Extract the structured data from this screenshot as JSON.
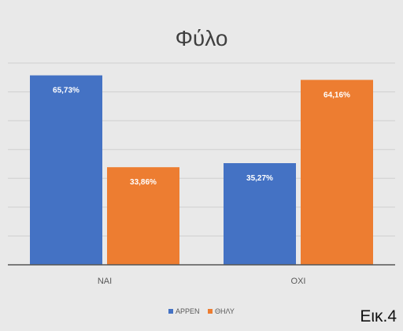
{
  "figure_label": "Εικ.4",
  "colors": {
    "background": "#e9e9e9",
    "grid": "#cfcfcf",
    "axis": "#555555"
  },
  "chart_data": {
    "type": "bar",
    "title": "Φύλο",
    "categories": [
      "ΝΑΙ",
      "ΟΧΙ"
    ],
    "series": [
      {
        "name": "ΑΡΡΕΝ",
        "color": "#4472c4",
        "values": [
          65.73,
          35.27
        ],
        "labels": [
          "65,73%",
          "35,27%"
        ]
      },
      {
        "name": "ΘΗΛΥ",
        "color": "#ed7d31",
        "values": [
          33.86,
          64.16
        ],
        "labels": [
          "33,86%",
          "64,16%"
        ]
      }
    ],
    "ylim": [
      0,
      70
    ],
    "grid": true,
    "legend": "bottom"
  }
}
